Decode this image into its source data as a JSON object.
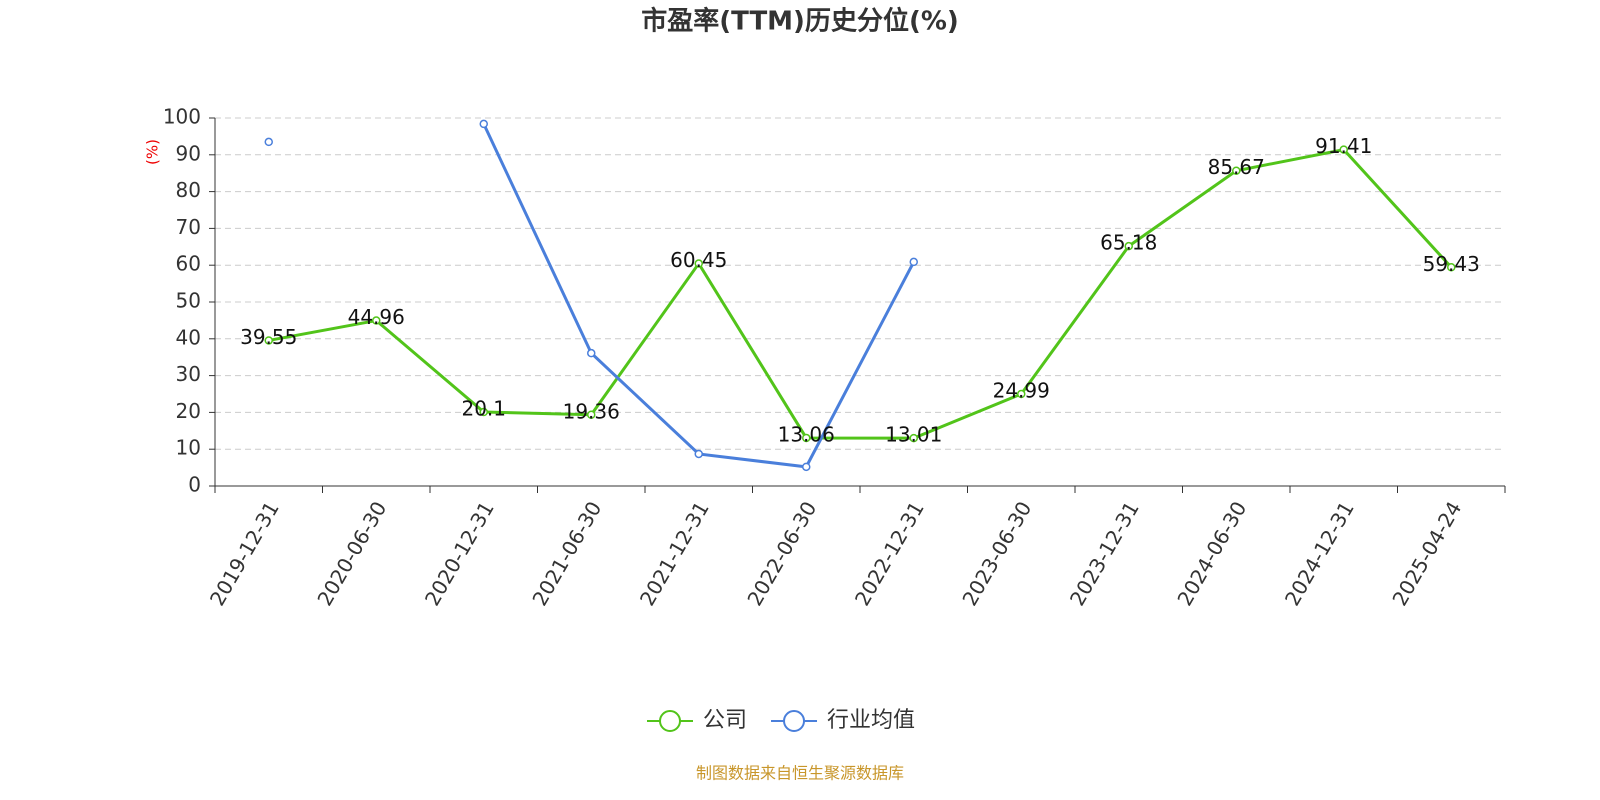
{
  "chart_data": {
    "type": "line",
    "title": "市盈率(TTM)历史分位(%)",
    "y_label": "(%)",
    "categories": [
      "2019-12-31",
      "2020-06-30",
      "2020-12-31",
      "2021-06-30",
      "2021-12-31",
      "2022-06-30",
      "2022-12-31",
      "2023-06-30",
      "2023-12-31",
      "2024-06-30",
      "2024-12-31",
      "2025-04-24"
    ],
    "series": [
      {
        "name": "公司",
        "color": "#52c41a",
        "data_labels": true,
        "values": [
          39.55,
          44.96,
          20.1,
          19.36,
          60.45,
          13.06,
          13.01,
          24.99,
          65.18,
          85.67,
          91.41,
          59.43
        ]
      },
      {
        "name": "行业均值",
        "color": "#4a7fdb",
        "data_labels": false,
        "values": [
          93.5,
          null,
          98.4,
          36.1,
          8.7,
          5.2,
          60.9,
          null,
          null,
          null,
          null,
          null
        ]
      }
    ],
    "ylim": [
      0,
      100
    ],
    "yticks": [
      0,
      10,
      20,
      30,
      40,
      50,
      60,
      70,
      80,
      90,
      100
    ],
    "grid": true,
    "legend": "bottom",
    "source": "制图数据来自恒生聚源数据库"
  }
}
